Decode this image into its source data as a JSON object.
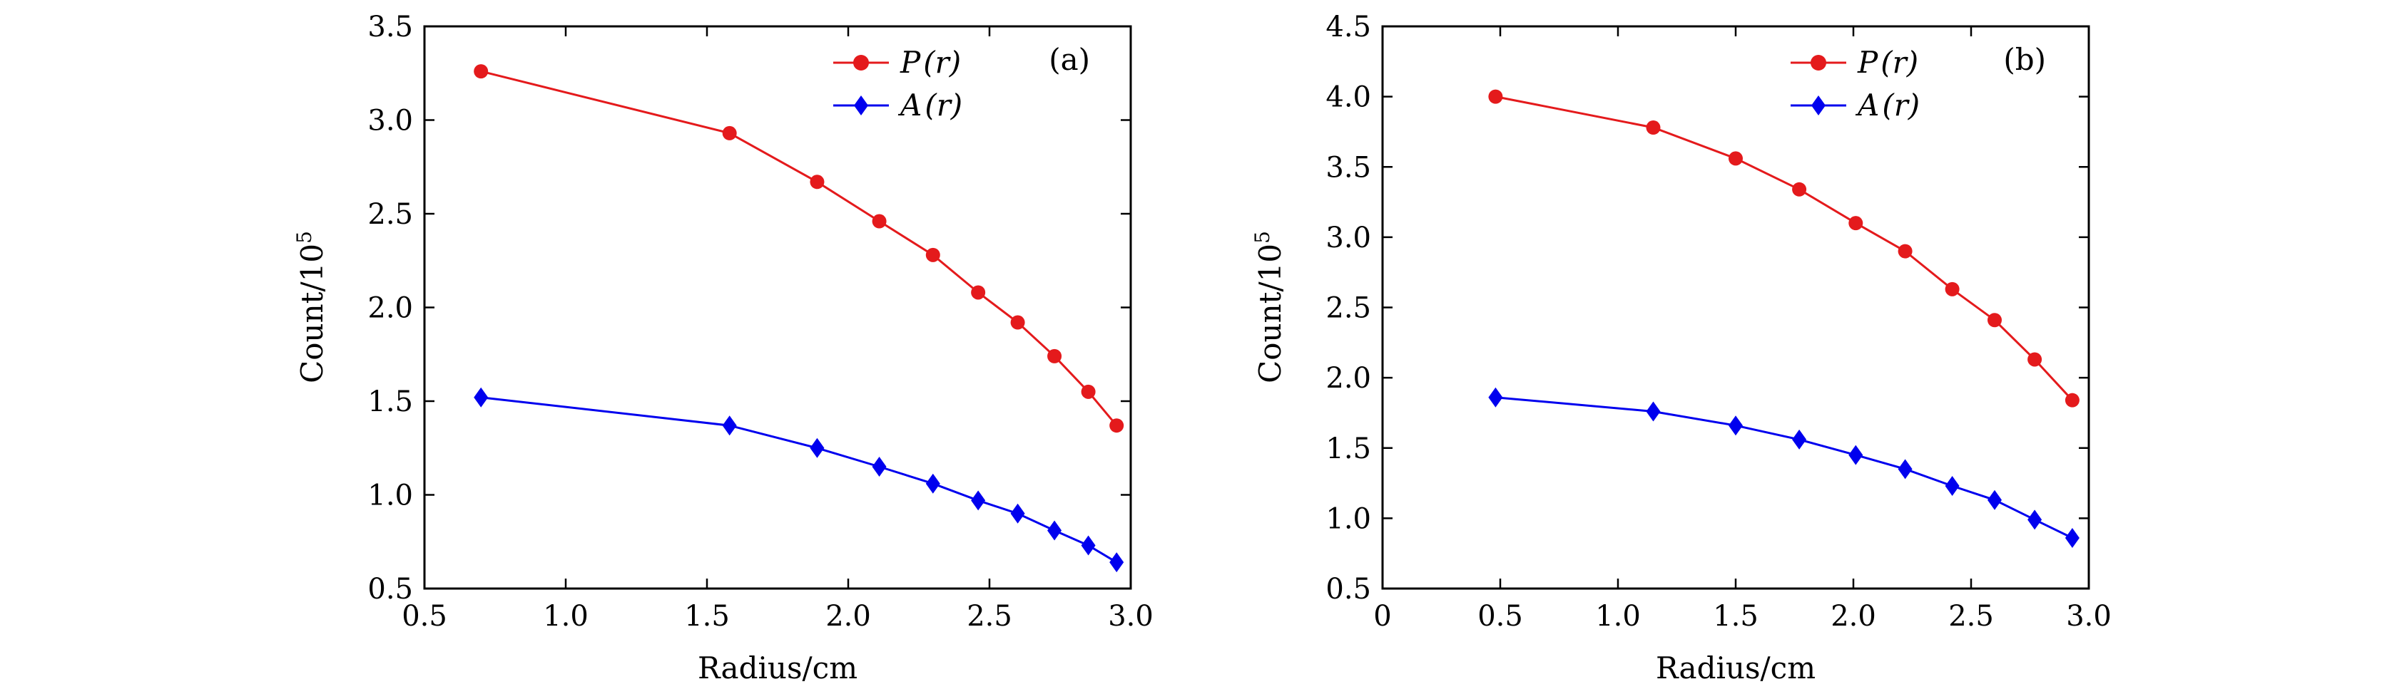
{
  "chart_data": [
    {
      "type": "line",
      "panel_label": "(a)",
      "xlabel": "Radius/cm",
      "ylabel": "Count/10",
      "ylabel_exponent": "5",
      "xlim": [
        0.5,
        3.0
      ],
      "ylim": [
        0.5,
        3.5
      ],
      "xticks": [
        0.5,
        1.0,
        1.5,
        2.0,
        2.5,
        3.0
      ],
      "xtick_labels": [
        "0.5",
        "1.0",
        "1.5",
        "2.0",
        "2.5",
        "3.0"
      ],
      "yticks": [
        0.5,
        1.0,
        1.5,
        2.0,
        2.5,
        3.0,
        3.5
      ],
      "ytick_labels": [
        "0.5",
        "1.0",
        "1.5",
        "2.0",
        "2.5",
        "3.0",
        "3.5"
      ],
      "legend_position": "top-right",
      "series": [
        {
          "name": "P(r)",
          "label_main": "P",
          "label_arg": "(r)",
          "color": "#e41a1c",
          "marker": "circle",
          "x": [
            0.7,
            1.58,
            1.89,
            2.11,
            2.3,
            2.46,
            2.6,
            2.73,
            2.85,
            2.95
          ],
          "values": [
            3.26,
            2.93,
            2.67,
            2.46,
            2.28,
            2.08,
            1.92,
            1.74,
            1.55,
            1.37
          ]
        },
        {
          "name": "A(r)",
          "label_main": "A",
          "label_arg": "(r)",
          "color": "#0000ee",
          "marker": "diamond",
          "x": [
            0.7,
            1.58,
            1.89,
            2.11,
            2.3,
            2.46,
            2.6,
            2.73,
            2.85,
            2.95
          ],
          "values": [
            1.52,
            1.37,
            1.25,
            1.15,
            1.06,
            0.97,
            0.9,
            0.81,
            0.73,
            0.64
          ]
        }
      ]
    },
    {
      "type": "line",
      "panel_label": "(b)",
      "xlabel": "Radius/cm",
      "ylabel": "Count/10",
      "ylabel_exponent": "5",
      "xlim": [
        0,
        3.0
      ],
      "ylim": [
        0.5,
        4.5
      ],
      "xticks": [
        0,
        0.5,
        1.0,
        1.5,
        2.0,
        2.5,
        3.0
      ],
      "xtick_labels": [
        "0",
        "0.5",
        "1.0",
        "1.5",
        "2.0",
        "2.5",
        "3.0"
      ],
      "yticks": [
        0.5,
        1.0,
        1.5,
        2.0,
        2.5,
        3.0,
        3.5,
        4.0,
        4.5
      ],
      "ytick_labels": [
        "0.5",
        "1.0",
        "1.5",
        "2.0",
        "2.5",
        "3.0",
        "3.5",
        "4.0",
        "4.5"
      ],
      "legend_position": "top-right",
      "series": [
        {
          "name": "P(r)",
          "label_main": "P",
          "label_arg": "(r)",
          "color": "#e41a1c",
          "marker": "circle",
          "x": [
            0.48,
            1.15,
            1.5,
            1.77,
            2.01,
            2.22,
            2.42,
            2.6,
            2.77,
            2.93
          ],
          "values": [
            4.0,
            3.78,
            3.56,
            3.34,
            3.1,
            2.9,
            2.63,
            2.41,
            2.13,
            1.84
          ]
        },
        {
          "name": "A(r)",
          "label_main": "A",
          "label_arg": "(r)",
          "color": "#0000ee",
          "marker": "diamond",
          "x": [
            0.48,
            1.15,
            1.5,
            1.77,
            2.01,
            2.22,
            2.42,
            2.6,
            2.77,
            2.93
          ],
          "values": [
            1.86,
            1.76,
            1.66,
            1.56,
            1.45,
            1.35,
            1.23,
            1.13,
            0.99,
            0.86
          ]
        }
      ]
    }
  ]
}
